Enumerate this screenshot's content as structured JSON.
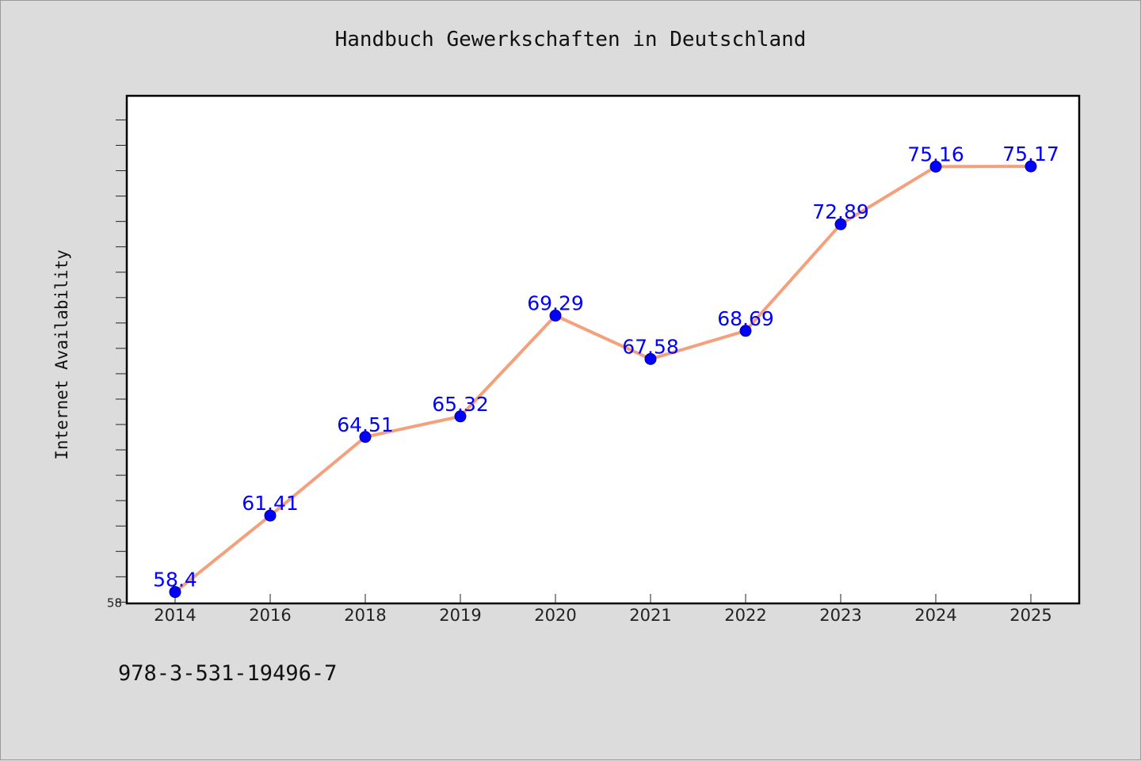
{
  "chart_data": {
    "type": "line",
    "title": "Handbuch Gewerkschaften in Deutschland",
    "xlabel": "",
    "ylabel": "Internet Availability",
    "categories": [
      "2014",
      "2016",
      "2018",
      "2019",
      "2020",
      "2021",
      "2022",
      "2023",
      "2024",
      "2025"
    ],
    "values": [
      58.4,
      61.41,
      64.51,
      65.32,
      69.29,
      67.58,
      68.69,
      72.89,
      75.16,
      75.17
    ],
    "data_labels": [
      "58.4",
      "61.41",
      "64.51",
      "65.32",
      "69.29",
      "67.58",
      "68.69",
      "72.89",
      "75.16",
      "75.17"
    ],
    "ylim": [
      57.95,
      77.95
    ],
    "y_tick_labels": [
      "58"
    ],
    "grid": false,
    "legend": "none",
    "colors": {
      "line": "#f4a07c",
      "marker": "#0000ff",
      "marker_edge": "#00008b",
      "label": "#0000ff",
      "background": "#dcdcdc",
      "plot_background": "#ffffff"
    }
  },
  "footer": {
    "isbn": "978-3-531-19496-7"
  }
}
